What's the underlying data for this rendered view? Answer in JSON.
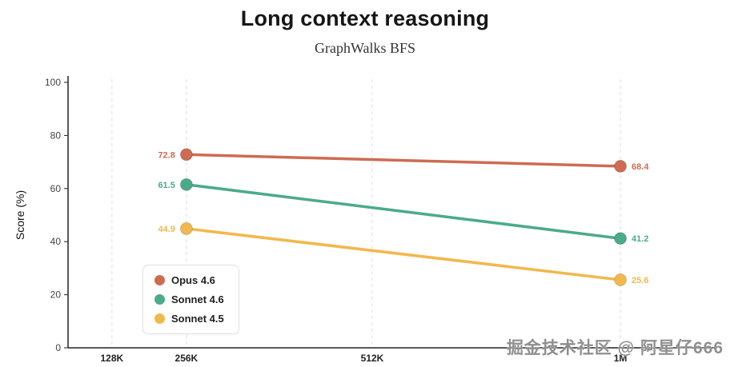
{
  "title": "Long context reasoning",
  "subtitle": "GraphWalks BFS",
  "watermark": "掘金技术社区 @ 阿星仔666",
  "chart_data": {
    "type": "line",
    "title": "Long context reasoning",
    "subtitle": "GraphWalks BFS",
    "xlabel": "",
    "ylabel": "Score (%)",
    "ylim": [
      0,
      100
    ],
    "yticks": [
      0,
      20,
      40,
      60,
      80,
      100
    ],
    "categories": [
      "128K",
      "256K",
      "512K",
      "1M"
    ],
    "grid": "vertical-dashed",
    "legend_position": "inside-bottom-left",
    "series": [
      {
        "name": "Opus 4.6",
        "color": "#cd6c52",
        "x": [
          "256K",
          "1M"
        ],
        "values": [
          72.8,
          68.4
        ]
      },
      {
        "name": "Sonnet 4.6",
        "color": "#4aab8b",
        "x": [
          "256K",
          "1M"
        ],
        "values": [
          61.5,
          41.2
        ]
      },
      {
        "name": "Sonnet 4.5",
        "color": "#f2b84e",
        "x": [
          "256K",
          "1M"
        ],
        "values": [
          44.9,
          25.6
        ]
      }
    ]
  }
}
